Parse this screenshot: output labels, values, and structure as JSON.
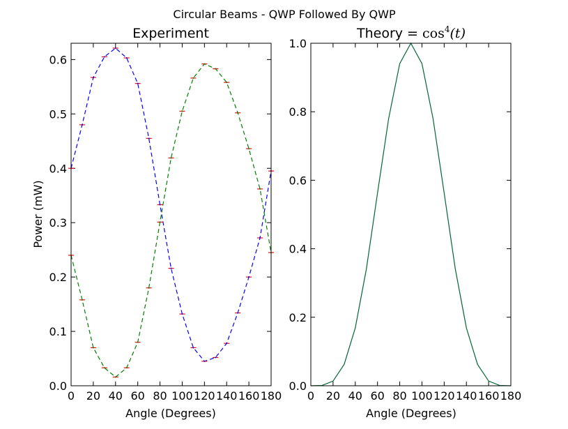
{
  "figure": {
    "title": "Circular Beams - QWP Followed By QWP"
  },
  "chart_data": [
    {
      "type": "line",
      "title": "Experiment",
      "xlabel": "Angle (Degrees)",
      "ylabel": "Power (mW)",
      "xlim": [
        0,
        180
      ],
      "ylim": [
        0,
        0.63
      ],
      "x_ticks": [
        0,
        20,
        40,
        60,
        80,
        100,
        120,
        140,
        160,
        180
      ],
      "x_tick_labels": [
        "0",
        "20",
        "40",
        "60",
        "80",
        "100",
        "120",
        "140",
        "160",
        "180"
      ],
      "y_ticks": [
        0,
        0.1,
        0.2,
        0.3,
        0.4,
        0.5,
        0.6
      ],
      "y_tick_labels": [
        "0.0",
        "0.1",
        "0.2",
        "0.3",
        "0.4",
        "0.5",
        "0.6"
      ],
      "grid": false,
      "x": [
        0,
        10,
        20,
        30,
        40,
        50,
        60,
        70,
        80,
        90,
        100,
        110,
        120,
        130,
        140,
        150,
        160,
        170,
        180
      ],
      "series": [
        {
          "color": "#0000ff",
          "linestyle": "dashed",
          "error_bar_color": "#ff0000",
          "values": [
            0.4,
            0.48,
            0.567,
            0.605,
            0.621,
            0.603,
            0.556,
            0.455,
            0.333,
            0.216,
            0.132,
            0.07,
            0.045,
            0.052,
            0.078,
            0.134,
            0.2,
            0.272,
            0.395
          ]
        },
        {
          "color": "#008000",
          "linestyle": "dashed",
          "error_bar_color": "#ff0000",
          "values": [
            0.24,
            0.158,
            0.07,
            0.033,
            0.016,
            0.033,
            0.08,
            0.18,
            0.301,
            0.419,
            0.505,
            0.566,
            0.592,
            0.583,
            0.558,
            0.502,
            0.436,
            0.362,
            0.245
          ]
        }
      ]
    },
    {
      "type": "line",
      "title_prefix": "Theory = ",
      "title_math": "cos",
      "title_math_exp": "4",
      "title_math_arg": "(t)",
      "xlabel": "Angle (Degrees)",
      "ylabel": "",
      "xlim": [
        0,
        180
      ],
      "ylim": [
        0,
        1.0
      ],
      "x_ticks": [
        0,
        20,
        40,
        60,
        80,
        100,
        120,
        140,
        160,
        180
      ],
      "x_tick_labels": [
        "0",
        "20",
        "40",
        "60",
        "80",
        "100",
        "120",
        "140",
        "160",
        "180"
      ],
      "y_ticks": [
        0,
        0.2,
        0.4,
        0.6,
        0.8,
        1.0
      ],
      "y_tick_labels": [
        "0.0",
        "0.2",
        "0.4",
        "0.6",
        "0.8",
        "1.0"
      ],
      "grid": false,
      "x": [
        0,
        10,
        20,
        30,
        40,
        50,
        60,
        70,
        80,
        90,
        100,
        110,
        120,
        130,
        140,
        150,
        160,
        170,
        180
      ],
      "series": [
        {
          "color": "#006633",
          "linestyle": "solid",
          "values": [
            0.0,
            0.0009,
            0.0137,
            0.0625,
            0.1688,
            0.3412,
            0.5625,
            0.7797,
            0.9406,
            1.0,
            0.9406,
            0.7797,
            0.5625,
            0.3412,
            0.1688,
            0.0625,
            0.0137,
            0.0009,
            0.0
          ]
        }
      ]
    }
  ]
}
